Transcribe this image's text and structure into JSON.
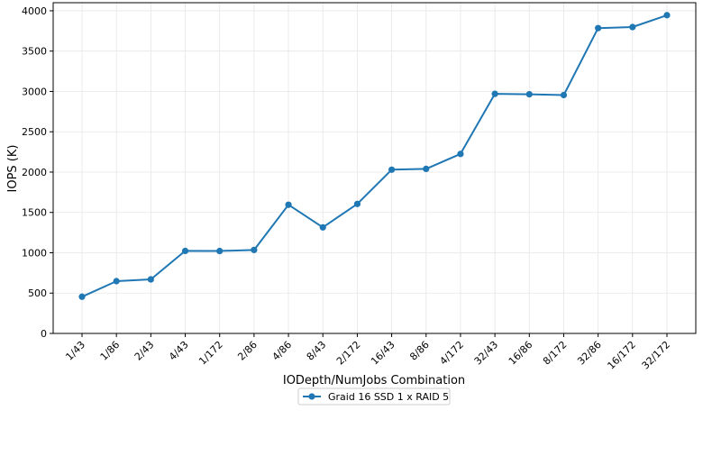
{
  "chart_data": {
    "type": "line",
    "xlabel": "IODepth/NumJobs Combination",
    "ylabel": "IOPS (K)",
    "categories": [
      "1/43",
      "1/86",
      "2/43",
      "4/43",
      "1/172",
      "2/86",
      "4/86",
      "8/43",
      "2/172",
      "16/43",
      "8/86",
      "4/172",
      "32/43",
      "16/86",
      "8/172",
      "32/86",
      "16/172",
      "32/172"
    ],
    "series": [
      {
        "name": "Graid 16 SSD 1 x RAID 5",
        "color": "#1f77b4",
        "marker": "circle",
        "values": [
          455,
          648,
          670,
          1023,
          1022,
          1035,
          1595,
          1315,
          1605,
          2030,
          2040,
          2225,
          2970,
          2965,
          2955,
          3785,
          3798,
          3945
        ]
      }
    ],
    "ylim": [
      0,
      4100
    ],
    "yticks": [
      0,
      500,
      1000,
      1500,
      2000,
      2500,
      3000,
      3500,
      4000
    ],
    "grid": true,
    "legend_position": "bottom-center"
  }
}
